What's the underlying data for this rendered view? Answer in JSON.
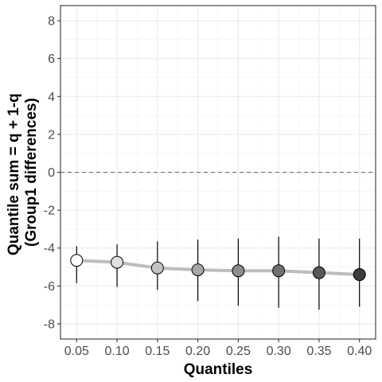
{
  "chart_data": {
    "type": "scatter",
    "title": "",
    "xlabel": "Quantiles",
    "ylabel_lines": [
      "Quantile sum = q + 1-q",
      "(Group1 differences)"
    ],
    "x_ticks": [
      "0.05",
      "0.10",
      "0.15",
      "0.20",
      "0.25",
      "0.30",
      "0.35",
      "0.40"
    ],
    "y_ticks": [
      8,
      6,
      4,
      2,
      0,
      -2,
      -4,
      -6,
      -8
    ],
    "y_tick_labels": [
      "8",
      "6",
      "4",
      "2",
      "0",
      "-2",
      "-4",
      "-6",
      "-8"
    ],
    "xlim": [
      0.03,
      0.42
    ],
    "ylim": [
      -8.8,
      8.8
    ],
    "grid": true,
    "reference_line": {
      "y": 0,
      "style": "dashed"
    },
    "series": [
      {
        "x": [
          0.05,
          0.1,
          0.15,
          0.2,
          0.25,
          0.3,
          0.35,
          0.4
        ],
        "y": [
          -4.65,
          -4.75,
          -5.05,
          -5.15,
          -5.2,
          -5.2,
          -5.3,
          -5.4
        ],
        "ci_low": [
          -5.85,
          -6.05,
          -6.2,
          -6.8,
          -7.05,
          -7.15,
          -7.25,
          -7.1
        ],
        "ci_high": [
          -3.9,
          -3.8,
          -3.65,
          -3.55,
          -3.5,
          -3.4,
          -3.5,
          -3.5
        ],
        "point_colors": [
          "#ffffff",
          "#e0e0e0",
          "#c4c4c4",
          "#a6a6a6",
          "#8c8c8c",
          "#707070",
          "#585858",
          "#3c3c3c"
        ],
        "line_color": "#bdbdbd"
      }
    ]
  }
}
